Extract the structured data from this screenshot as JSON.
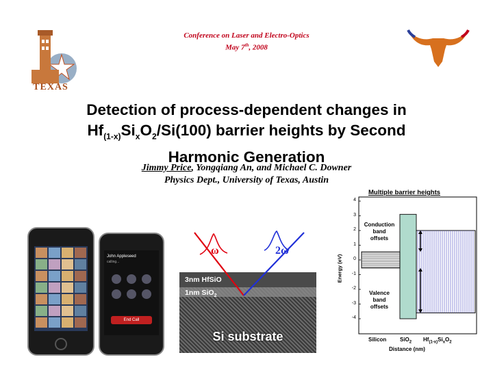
{
  "header": {
    "conference": "Conference on Laser and Electro-Optics",
    "date_prefix": "May 7",
    "date_sup": "th",
    "date_suffix": ", 2008",
    "left_logo_text": "TEXAS"
  },
  "title": {
    "line1": "Detection of process-dependent changes in",
    "line2_a": "Hf",
    "line2_sub1": "(1-x)",
    "line2_b": "Si",
    "line2_sub2": "x",
    "line2_c": "O",
    "line2_sub3": "2",
    "line2_d": "/Si(100) barrier heights by Second",
    "line3": "Harmonic Generation"
  },
  "authors": {
    "presenter": "Jimmy Price",
    "others": ", Yongqiang An, and Michael C. Downer",
    "affiliation": "Physics Dept., University of Texas, Austin"
  },
  "phone": {
    "contact_name": "John Appleseed",
    "calling": "calling...",
    "end_call": "End Call"
  },
  "tem": {
    "omega": "ω",
    "two_omega": "2ω",
    "layer1": "3nm HfSiO",
    "layer2_a": "1nm SiO",
    "layer2_sub": "2",
    "substrate": "Si substrate"
  },
  "chart_data": {
    "type": "band-diagram",
    "title": "Multiple barrier heights",
    "ylabel": "Energy (eV)",
    "xlabel": "Distance (nm)",
    "ylim": [
      -4,
      4
    ],
    "yticks": [
      4,
      3,
      2,
      1,
      0,
      -1,
      -2,
      -3,
      -4
    ],
    "regions": [
      {
        "label": "Silicon",
        "band_top": 0.55,
        "band_bottom": -0.55
      },
      {
        "label_a": "SiO",
        "label_sub": "2",
        "band_top": 3.1,
        "band_bottom": -4.0
      },
      {
        "label_a": "Hf",
        "label_sub1": "(1-x)",
        "label_b": "Si",
        "label_sub2": "x",
        "label_c": "O",
        "label_sub3": "2",
        "band_top": 2.0,
        "band_bottom": -3.6
      }
    ],
    "annotations": {
      "conduction": [
        "Conduction",
        "band",
        "offsets"
      ],
      "valence": [
        "Valence",
        "band",
        "offsets"
      ]
    },
    "colors": {
      "silicon": "#666666",
      "sio2": "#a8d8c8",
      "hfsio": "#6666cc"
    }
  }
}
